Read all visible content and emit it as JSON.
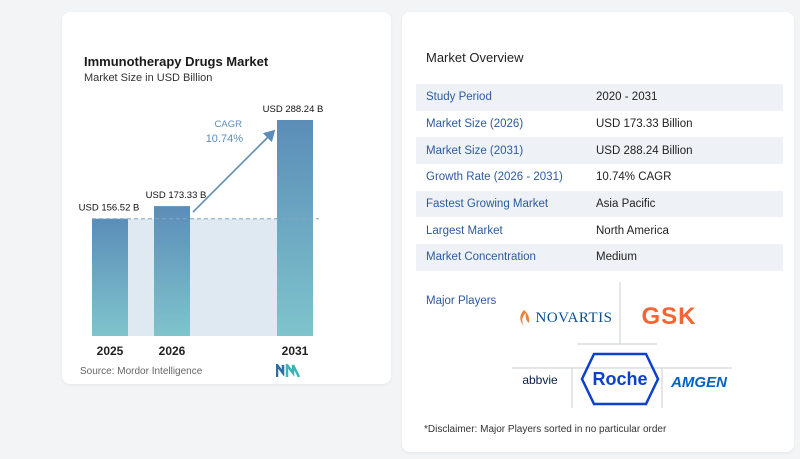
{
  "chart_data": {
    "type": "bar",
    "title": "Immunotherapy Drugs Market",
    "subtitle": "Market Size in USD Billion",
    "categories": [
      "2025",
      "2026",
      "2031"
    ],
    "values": [
      156.52,
      173.33,
      288.24
    ],
    "value_labels": [
      "USD 156.52 B",
      "USD 173.33 B",
      "USD 288.24 B"
    ],
    "cagr_label": "CAGR",
    "cagr_value": "10.74%",
    "ylim": [
      0,
      300
    ],
    "grid": false,
    "colors": {
      "bar_top": "#5b8db8",
      "bar_bottom": "#7fc4cc",
      "band": "#dfe9f1",
      "arrow": "#5b8db8",
      "dashed": "#7fa7c6"
    }
  },
  "source": "Source:  Mordor Intelligence",
  "overview": {
    "title": "Market Overview",
    "rows": [
      {
        "label": "Study Period",
        "value": "2020 - 2031"
      },
      {
        "label": "Market Size (2026)",
        "value": "USD 173.33 Billion"
      },
      {
        "label": "Market Size (2031)",
        "value": "USD 288.24 Billion"
      },
      {
        "label": "Growth Rate (2026 - 2031)",
        "value": "10.74% CAGR"
      },
      {
        "label": "Fastest Growing Market",
        "value": "Asia Pacific"
      },
      {
        "label": "Largest Market",
        "value": "North America"
      },
      {
        "label": "Market Concentration",
        "value": "Medium"
      }
    ],
    "players_title": "Major Players",
    "players": {
      "novartis": "NOVARTIS",
      "gsk": "GSK",
      "abbvie": "abbvie",
      "roche": "Roche",
      "amgen": "AMGEN"
    },
    "disclaimer": "*Disclaimer: Major Players sorted in no particular order"
  }
}
